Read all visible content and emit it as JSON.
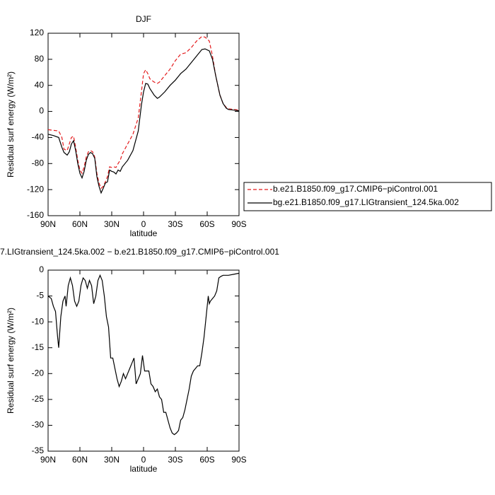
{
  "chart_data": [
    {
      "type": "line",
      "title": "DJF",
      "xlabel": "latitude",
      "ylabel": "Residual surf energy (W/m²)",
      "x": [
        90,
        85,
        80,
        77,
        75,
        72,
        70,
        68,
        66,
        64,
        62,
        60,
        58,
        56,
        54,
        52,
        50,
        48,
        46,
        44,
        42,
        40,
        38,
        36,
        34,
        32,
        30,
        28,
        26,
        24,
        22,
        20,
        15,
        10,
        5,
        2,
        0,
        -2,
        -4,
        -6,
        -10,
        -13,
        -15,
        -20,
        -25,
        -30,
        -35,
        -40,
        -45,
        -50,
        -55,
        -58,
        -62,
        -65,
        -68,
        -72,
        -75,
        -78,
        -80,
        -85,
        -90
      ],
      "series": [
        {
          "name": "b.e21.B1850.f09_g17.CMIP6−piControl.001",
          "color": "#e41a1c",
          "dash": true,
          "values": [
            -28,
            -29,
            -30,
            -40,
            -58,
            -60,
            -50,
            -40,
            -38,
            -55,
            -75,
            -90,
            -95,
            -85,
            -70,
            -62,
            -60,
            -62,
            -70,
            -95,
            -110,
            -118,
            -115,
            -108,
            -100,
            -85,
            -86,
            -85,
            -86,
            -80,
            -75,
            -65,
            -50,
            -35,
            -10,
            30,
            58,
            64,
            58,
            50,
            45,
            43,
            45,
            55,
            65,
            78,
            88,
            90,
            98,
            108,
            115,
            114,
            108,
            85,
            55,
            25,
            12,
            6,
            4,
            3,
            2
          ]
        },
        {
          "name": "bg.e21.B1850.f09_g17.LIGtransient_124.5ka.002",
          "color": "#000000",
          "dash": false,
          "values": [
            -35,
            -37,
            -40,
            -55,
            -63,
            -67,
            -62,
            -50,
            -45,
            -60,
            -80,
            -95,
            -102,
            -92,
            -75,
            -66,
            -63,
            -65,
            -72,
            -100,
            -115,
            -125,
            -118,
            -110,
            -108,
            -90,
            -92,
            -93,
            -96,
            -90,
            -92,
            -85,
            -75,
            -60,
            -30,
            10,
            30,
            43,
            42,
            35,
            25,
            20,
            22,
            30,
            40,
            48,
            58,
            65,
            75,
            85,
            95,
            96,
            93,
            80,
            55,
            25,
            12,
            5,
            3,
            2,
            1
          ]
        }
      ],
      "xlim": [
        90,
        -90
      ],
      "xticks": [
        {
          "value": 90,
          "label": "90N"
        },
        {
          "value": 60,
          "label": "60N"
        },
        {
          "value": 30,
          "label": "30N"
        },
        0,
        {
          "value": -30,
          "label": "30S"
        },
        {
          "value": -60,
          "label": "60S"
        },
        {
          "value": -90,
          "label": "90S"
        }
      ],
      "ylim": [
        -160,
        120
      ],
      "yticks": [
        -160,
        -120,
        -80,
        -40,
        0,
        40,
        80,
        120
      ],
      "legend": "right"
    },
    {
      "type": "line",
      "title": "7.LIGtransient_124.5ka.002 − b.e21.B1850.f09_g17.CMIP6−piControl.001",
      "xlabel": "latitude",
      "ylabel": "Residual surf energy (W/m²)",
      "x": [
        90,
        87,
        85,
        83,
        81,
        80,
        78,
        76,
        74,
        73,
        71,
        69,
        67,
        65,
        63,
        61,
        59,
        57,
        55,
        53,
        51,
        49,
        47,
        45,
        43,
        41,
        39,
        37,
        35,
        33,
        31,
        29,
        27,
        25,
        23,
        21,
        19,
        17,
        15,
        13,
        11,
        9,
        7,
        5,
        3,
        1,
        -1,
        -3,
        -5,
        -7,
        -9,
        -11,
        -13,
        -15,
        -17,
        -19,
        -21,
        -23,
        -25,
        -27,
        -29,
        -31,
        -33,
        -35,
        -37,
        -39,
        -41,
        -43,
        -45,
        -47,
        -49,
        -51,
        -53,
        -55,
        -57,
        -59,
        -61,
        -62,
        -63,
        -65,
        -67,
        -69,
        -71,
        -73,
        -75,
        -80,
        -85,
        -90
      ],
      "values": [
        -5,
        -5.5,
        -7,
        -8,
        -13,
        -15,
        -9,
        -6,
        -5,
        -7,
        -3,
        -1.5,
        -3,
        -6,
        -7,
        -6,
        -3,
        -1.5,
        -2,
        -3.5,
        -2,
        -3,
        -6.5,
        -5,
        -2,
        -1,
        -2,
        -5,
        -9,
        -11,
        -17,
        -17,
        -19,
        -21,
        -22.5,
        -21.5,
        -20,
        -21,
        -20,
        -19,
        -18,
        -17,
        -22,
        -21,
        -20,
        -16.5,
        -19.5,
        -19.5,
        -19.5,
        -22,
        -22.5,
        -23.5,
        -23,
        -24.5,
        -25,
        -27.5,
        -27.5,
        -29,
        -30.5,
        -31.5,
        -31.8,
        -31.5,
        -31,
        -29,
        -28.5,
        -27,
        -25,
        -23,
        -20.5,
        -19.5,
        -19,
        -18.5,
        -18.5,
        -16,
        -13,
        -9,
        -5,
        -6.5,
        -6,
        -5.5,
        -5,
        -4,
        -1.5,
        -1.2,
        -1,
        -1,
        -0.8,
        -0.6
      ],
      "color": "#000000",
      "xlim": [
        90,
        -90
      ],
      "xticks": [
        {
          "value": 90,
          "label": "90N"
        },
        {
          "value": 60,
          "label": "60N"
        },
        {
          "value": 30,
          "label": "30N"
        },
        0,
        {
          "value": -30,
          "label": "30S"
        },
        {
          "value": -60,
          "label": "60S"
        },
        {
          "value": -90,
          "label": "90S"
        }
      ],
      "ylim": [
        -35,
        0
      ],
      "yticks": [
        -35,
        -30,
        -25,
        -20,
        -15,
        -10,
        -5,
        0
      ]
    }
  ]
}
